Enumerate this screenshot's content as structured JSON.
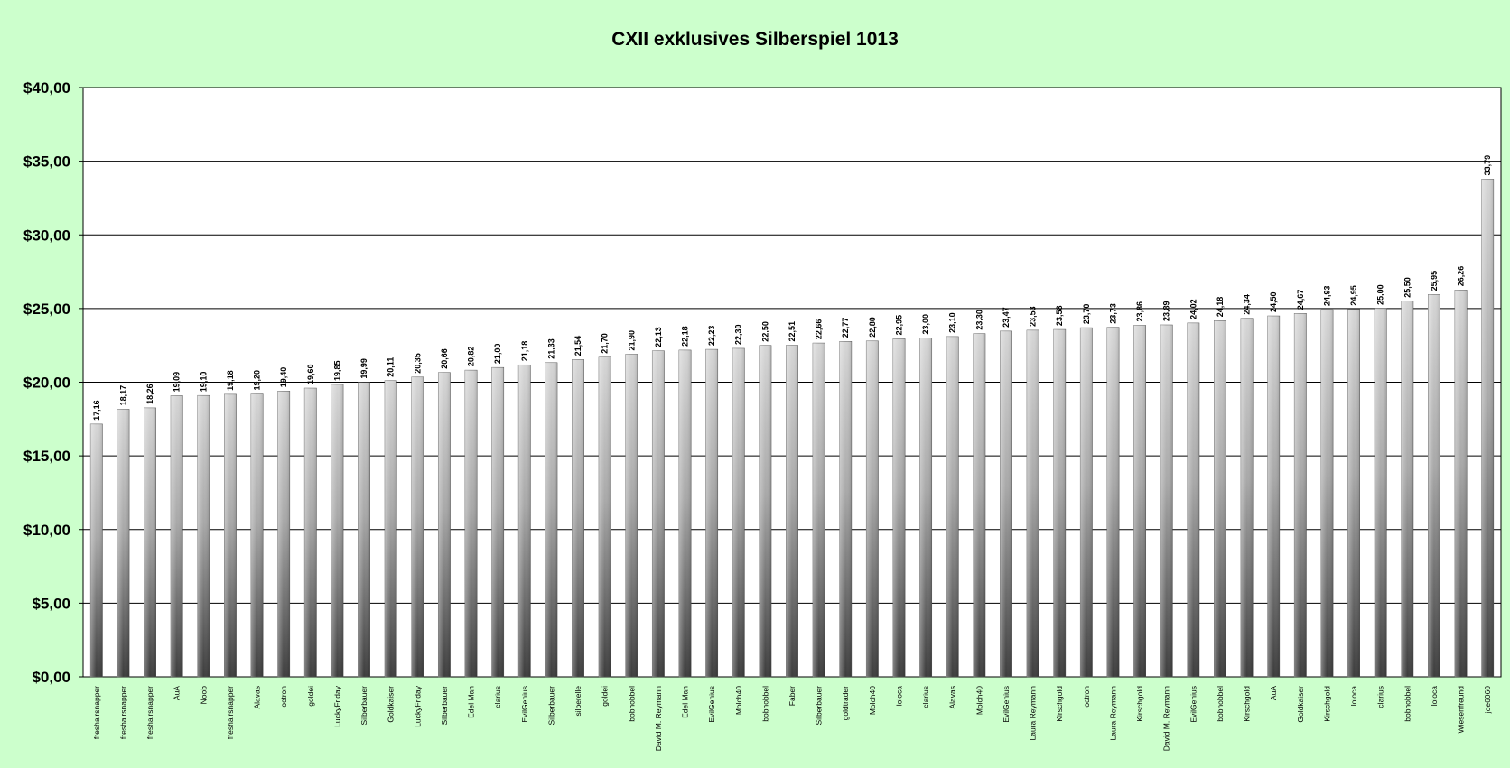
{
  "chart_data": {
    "type": "bar",
    "title": "CXII exklusives Silberspiel 1013",
    "xlabel": "",
    "ylabel": "",
    "ylim": [
      0,
      40
    ],
    "yticks": [
      0,
      5,
      10,
      15,
      20,
      25,
      30,
      35,
      40
    ],
    "ytick_labels": [
      "$0,00",
      "$5,00",
      "$10,00",
      "$15,00",
      "$20,00",
      "$25,00",
      "$30,00",
      "$35,00",
      "$40,00"
    ],
    "grid": true,
    "legend": "none",
    "categories": [
      "freshairsnapper",
      "freshairsnapper",
      "freshairsnapper",
      "AuA",
      "Noob",
      "freshairsnapper",
      "Alavas",
      "octron",
      "goldei",
      "LuckyFriday",
      "Silberbauer",
      "Goldkaiser",
      "LuckyFriday",
      "Silberbauer",
      "Edel Man",
      "clarius",
      "EvilGenius",
      "Silberbauer",
      "silberelle",
      "goldei",
      "bobhobbel",
      "David M. Reymann",
      "Edel Man",
      "EvilGenius",
      "Molch40",
      "bobhobbel",
      "Faber",
      "Silberbauer",
      "goldtrader",
      "Molch40",
      "loloca",
      "clarius",
      "Alavas",
      "Molch40",
      "EvilGenius",
      "Laura Reymann",
      "Kirschgold",
      "octron",
      "Laura Reymann",
      "Kirschgold",
      "David M. Reymann",
      "EvilGenius",
      "bobhobbel",
      "Kirschgold",
      "AuA",
      "Goldkaiser",
      "Kirschgold",
      "loloca",
      "clarius",
      "bobhobbel",
      "loloca",
      "Wiesenfreund",
      "joe6060"
    ],
    "values": [
      17.16,
      18.17,
      18.26,
      19.09,
      19.1,
      19.18,
      19.2,
      19.4,
      19.6,
      19.85,
      19.99,
      20.11,
      20.35,
      20.66,
      20.82,
      21.0,
      21.18,
      21.33,
      21.54,
      21.7,
      21.9,
      22.13,
      22.18,
      22.23,
      22.3,
      22.5,
      22.51,
      22.66,
      22.77,
      22.8,
      22.95,
      23.0,
      23.1,
      23.3,
      23.47,
      23.53,
      23.58,
      23.7,
      23.73,
      23.86,
      23.89,
      24.02,
      24.18,
      24.34,
      24.5,
      24.67,
      24.93,
      24.95,
      25.0,
      25.5,
      25.95,
      26.26,
      33.79
    ],
    "value_labels": [
      "17,16",
      "18,17",
      "18,26",
      "19,09",
      "19,10",
      "19,18",
      "19,20",
      "19,40",
      "19,60",
      "19,85",
      "19,99",
      "20,11",
      "20,35",
      "20,66",
      "20,82",
      "21,00",
      "21,18",
      "21,33",
      "21,54",
      "21,70",
      "21,90",
      "22,13",
      "22,18",
      "22,23",
      "22,30",
      "22,50",
      "22,51",
      "22,66",
      "22,77",
      "22,80",
      "22,95",
      "23,00",
      "23,10",
      "23,30",
      "23,47",
      "23,53",
      "23,58",
      "23,70",
      "23,73",
      "23,86",
      "23,89",
      "24,02",
      "24,18",
      "24,34",
      "24,50",
      "24,67",
      "24,93",
      "24,95",
      "25,00",
      "25,50",
      "25,95",
      "26,26",
      "33,79"
    ],
    "colors": {
      "background": "#ccffcc",
      "plot_area": "#ffffff",
      "bar_light": "#d6d6d6",
      "bar_mid": "#a8a8a8",
      "bar_dark": "#3c3c3c",
      "grid": "#000000"
    }
  }
}
